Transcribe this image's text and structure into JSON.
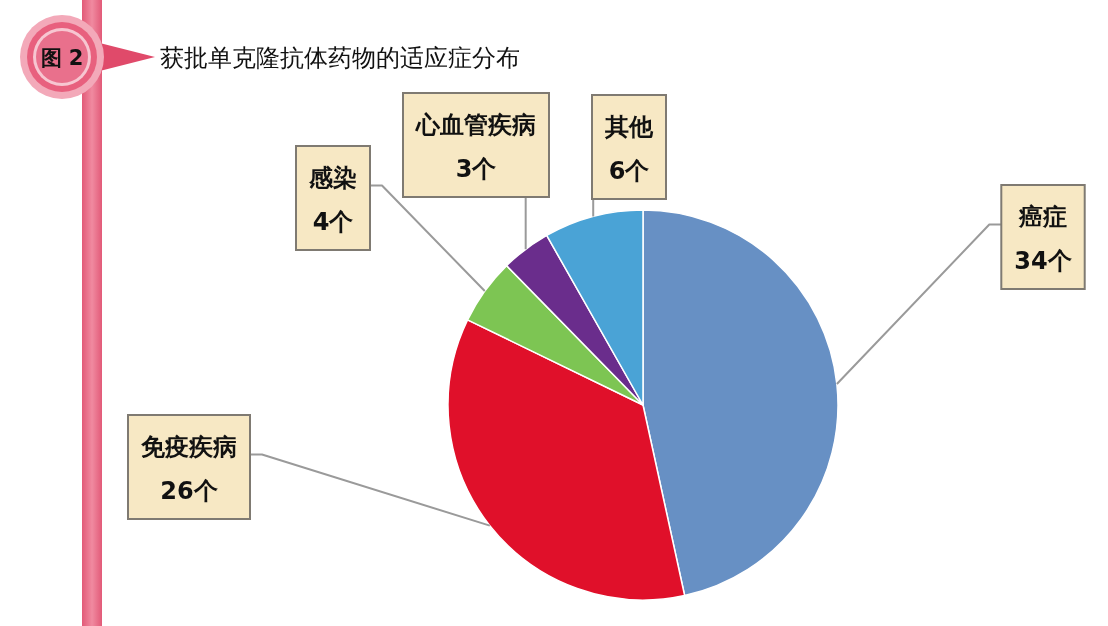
{
  "chart_data": {
    "type": "pie",
    "title": "获批单克隆抗体药物的适应症分布",
    "annotations": [
      "图 2"
    ],
    "categories": [
      "癌症",
      "免疫疾病",
      "感染",
      "心血管疾病",
      "其他"
    ],
    "values": [
      34,
      26,
      4,
      3,
      6
    ],
    "colors": [
      "#6790c4",
      "#e0102a",
      "#7dc553",
      "#6a2d8c",
      "#4aa3d6"
    ],
    "value_labels": [
      "34个",
      "26个",
      "4个",
      "3个",
      "6个"
    ]
  }
}
